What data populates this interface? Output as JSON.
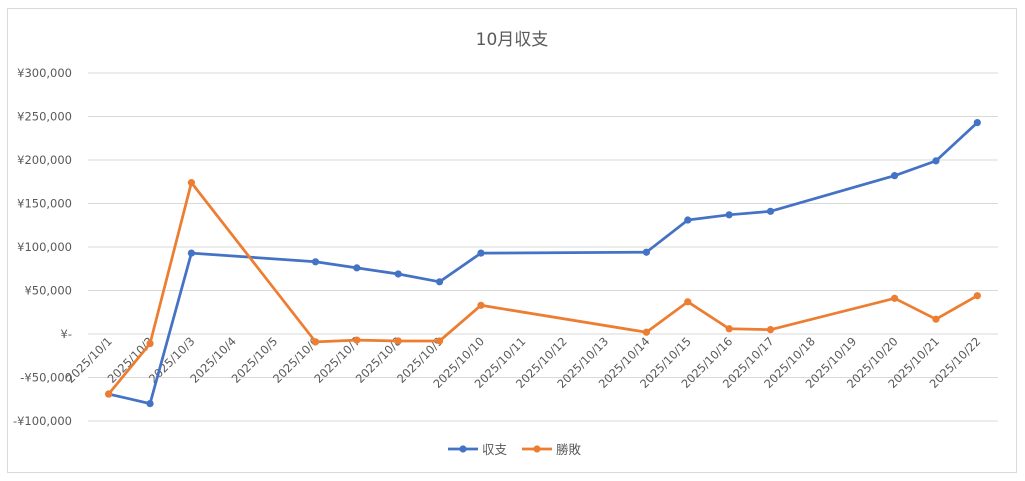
{
  "chart_data": {
    "type": "line",
    "title": "10月収支",
    "xlabel": "",
    "ylabel": "",
    "ylim": [
      -100000,
      300000
    ],
    "ytick_step": 50000,
    "ytick_labels": [
      "-¥100,000",
      "-¥50,000",
      "¥-",
      "¥50,000",
      "¥100,000",
      "¥150,000",
      "¥200,000",
      "¥250,000",
      "¥300,000"
    ],
    "grid": true,
    "legend_position": "bottom",
    "categories": [
      "2025/10/1",
      "2025/10/2",
      "2025/10/3",
      "2025/10/4",
      "2025/10/5",
      "2025/10/6",
      "2025/10/7",
      "2025/10/8",
      "2025/10/9",
      "2025/10/10",
      "2025/10/11",
      "2025/10/12",
      "2025/10/13",
      "2025/10/14",
      "2025/10/15",
      "2025/10/16",
      "2025/10/17",
      "2025/10/18",
      "2025/10/19",
      "2025/10/20",
      "2025/10/21",
      "2025/10/22"
    ],
    "series": [
      {
        "name": "収支",
        "color": "#4472c4",
        "values": [
          -69000,
          -80000,
          93000,
          null,
          null,
          83000,
          76000,
          69000,
          60000,
          93000,
          null,
          null,
          null,
          94000,
          131000,
          137000,
          141000,
          null,
          null,
          182000,
          199000,
          243000
        ]
      },
      {
        "name": "勝敗",
        "color": "#ed7d31",
        "values": [
          -69000,
          -11000,
          174000,
          null,
          null,
          -9000,
          -7000,
          -8000,
          -8000,
          33000,
          null,
          null,
          null,
          2000,
          37000,
          6000,
          5000,
          null,
          null,
          41000,
          17000,
          44000
        ]
      }
    ]
  }
}
